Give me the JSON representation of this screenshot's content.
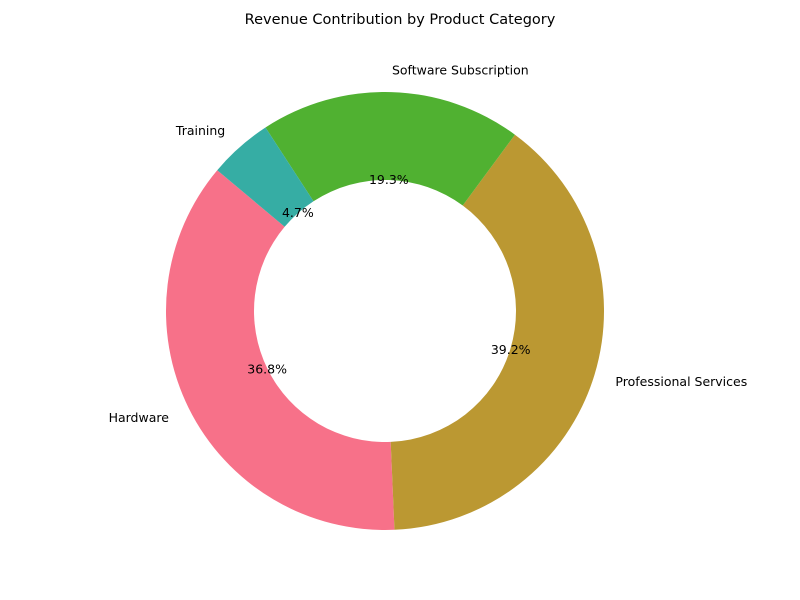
{
  "chart_data": {
    "type": "pie",
    "variant": "donut",
    "title": "Revenue Contribution by Product Category",
    "categories": [
      "Hardware",
      "Professional Services",
      "Software Subscription",
      "Training"
    ],
    "values": [
      36.8,
      39.2,
      19.3,
      4.7
    ],
    "value_labels": [
      "36.8%",
      "39.2%",
      "19.3%",
      "4.7%"
    ],
    "colors": [
      "#f77189",
      "#bb9832",
      "#50b131",
      "#36ada4"
    ],
    "start_angle_deg": 140,
    "direction": "counterclockwise",
    "legend": "none",
    "background": "#ffffff"
  }
}
